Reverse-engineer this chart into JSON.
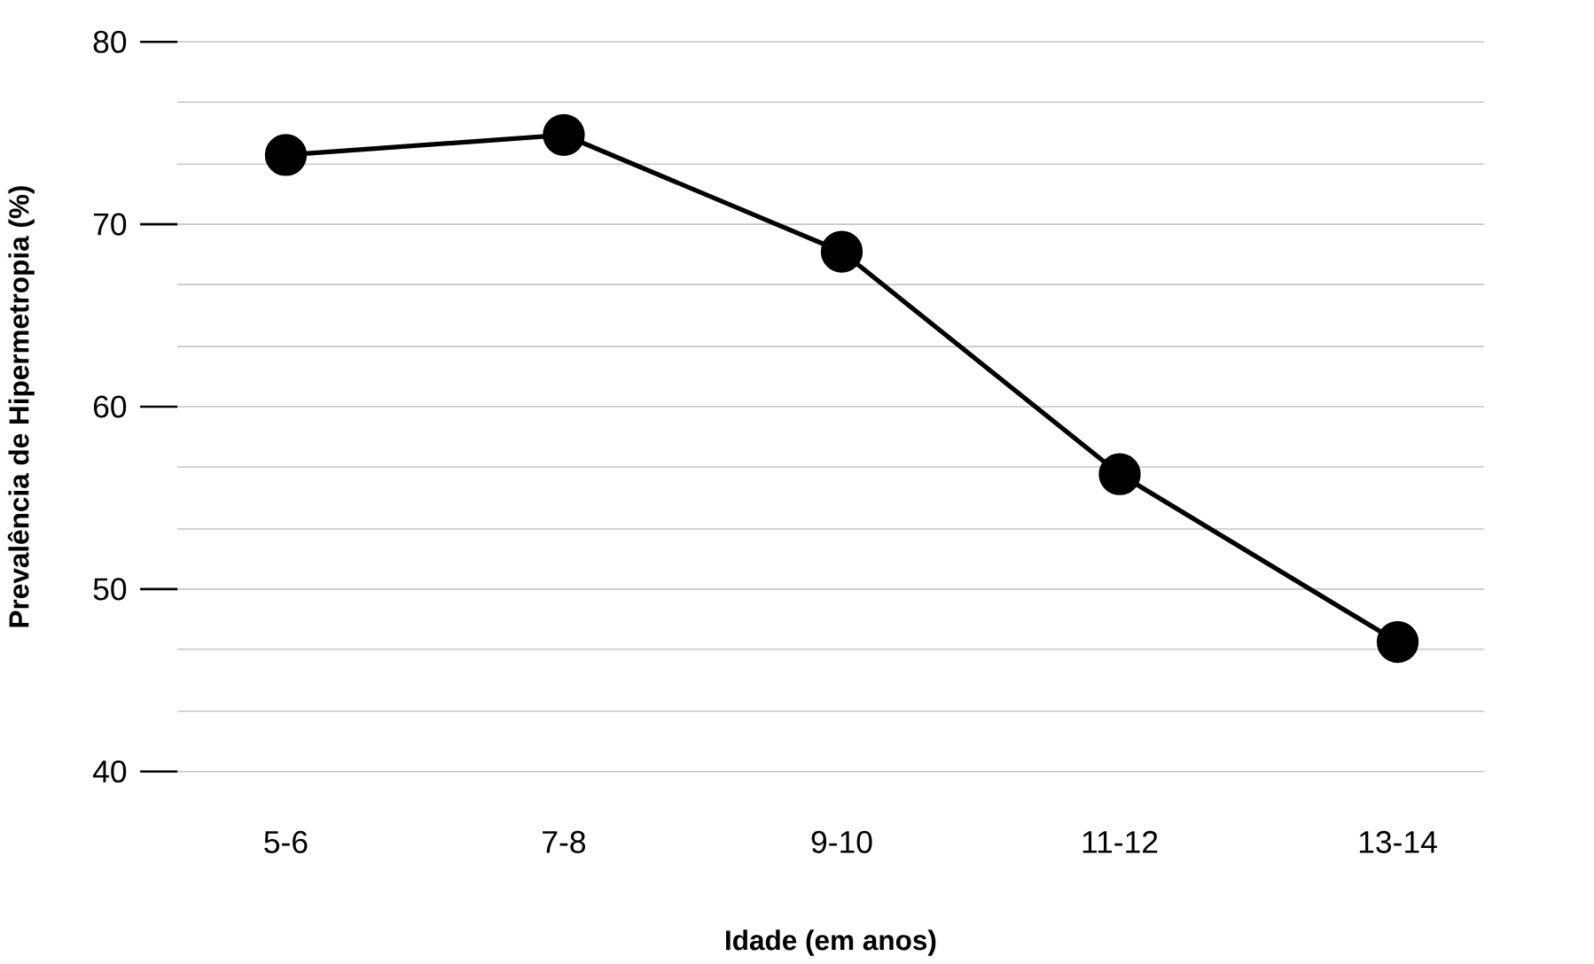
{
  "chart_data": {
    "type": "line",
    "xlabel": "Idade (em anos)",
    "ylabel": "Prevalência de Hipermetropia (%)",
    "categories": [
      "5-6",
      "7-8",
      "9-10",
      "11-12",
      "13-14"
    ],
    "series": [
      {
        "color": "#000000",
        "values": [
          73.8,
          74.9,
          68.5,
          56.3,
          47.1
        ]
      }
    ],
    "ylim": [
      40,
      80
    ],
    "yticks": [
      40,
      {
        "value": 43.3,
        "label": null
      },
      {
        "value": 46.7,
        "label": null
      },
      50,
      {
        "value": 53.3,
        "label": null
      },
      {
        "value": 56.7,
        "label": null
      },
      60,
      {
        "value": 63.3,
        "label": null
      },
      {
        "value": 66.7,
        "label": null
      },
      70,
      {
        "value": 73.3,
        "label": null
      },
      {
        "value": 76.7,
        "label": null
      },
      80
    ],
    "grid": "y",
    "marker": "circle",
    "line_style": "solid"
  }
}
